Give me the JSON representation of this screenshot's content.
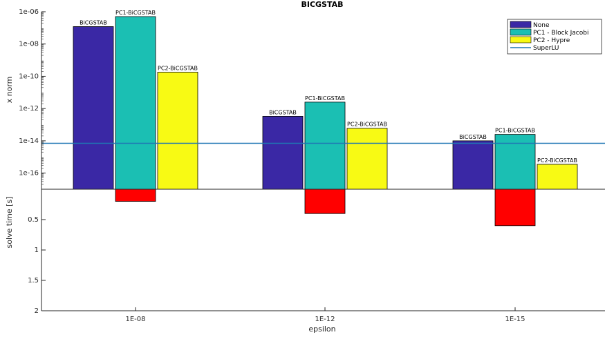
{
  "chart_data": {
    "type": "bar",
    "title": "BICGSTAB",
    "xlabel": "epsilon",
    "categories": [
      "1E-08",
      "1E-12",
      "1E-15"
    ],
    "top_panel": {
      "ylabel": "x norm",
      "yscale": "log",
      "ylim": [
        1e-17,
        1e-06
      ],
      "yticklabels": [
        "1e-06",
        "1e-08",
        "1e-10",
        "1e-12",
        "1e-14",
        "1e-16"
      ],
      "series": [
        {
          "name": "None",
          "bar_label": "BiCGSTAB",
          "color": "#3a28a5",
          "values": [
            1.2e-07,
            3.3e-13,
            1e-14
          ]
        },
        {
          "name": "PC1 - Block Jacobi",
          "bar_label": "PC1-BiCGSTAB",
          "color": "#1bbfb3",
          "values": [
            5e-07,
            2.5e-12,
            2.5e-14
          ]
        },
        {
          "name": "PC2 - Hypre",
          "bar_label": "PC2-BiCGSTAB",
          "color": "#f8fa14",
          "values": [
            1.8e-10,
            6e-14,
            3.5e-16
          ]
        }
      ],
      "reference_line": {
        "name": "SuperLU",
        "value": 7e-15,
        "color": "#1f77b4"
      }
    },
    "bottom_panel": {
      "ylabel": "solve time [s]",
      "ylim": [
        0,
        2
      ],
      "yticklabels": [
        "0.5",
        "1",
        "1.5",
        "2"
      ],
      "series": [
        {
          "name": "PC1 - Block Jacobi",
          "color": "#ff0000",
          "values": [
            0.2,
            0.4,
            0.6
          ]
        }
      ]
    },
    "legend": {
      "placement": "top-right",
      "entries": [
        "None",
        "PC1 - Block Jacobi",
        "PC2 - Hypre",
        "SuperLU"
      ]
    }
  }
}
